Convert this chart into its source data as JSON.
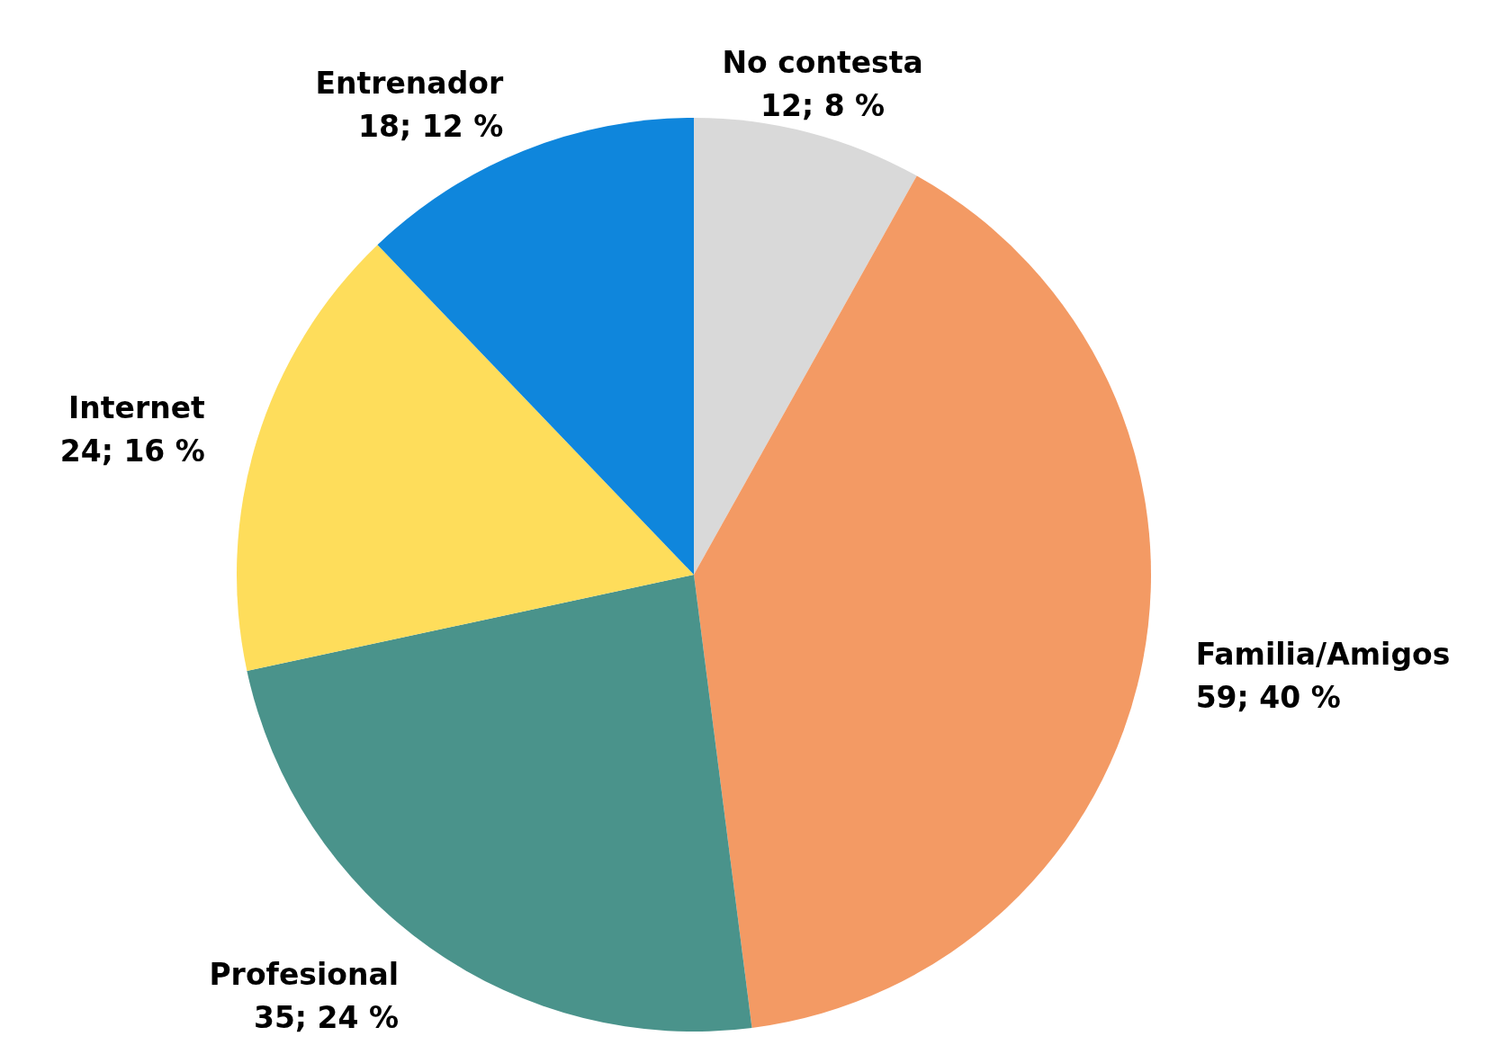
{
  "chart_data": {
    "type": "pie",
    "categories": [
      "No contesta",
      "Familia/Amigos",
      "Profesional",
      "Internet",
      "Entrenador"
    ],
    "values": [
      12,
      59,
      35,
      24,
      18
    ],
    "colors": [
      "#d9d9d9",
      "#f39a64",
      "#4a938b",
      "#fedd5b",
      "#0f86dc"
    ],
    "value_labels": [
      "12; 8 %",
      "59; 40 %",
      "35; 24 %",
      "24; 16 %",
      "18; 12 %"
    ]
  }
}
